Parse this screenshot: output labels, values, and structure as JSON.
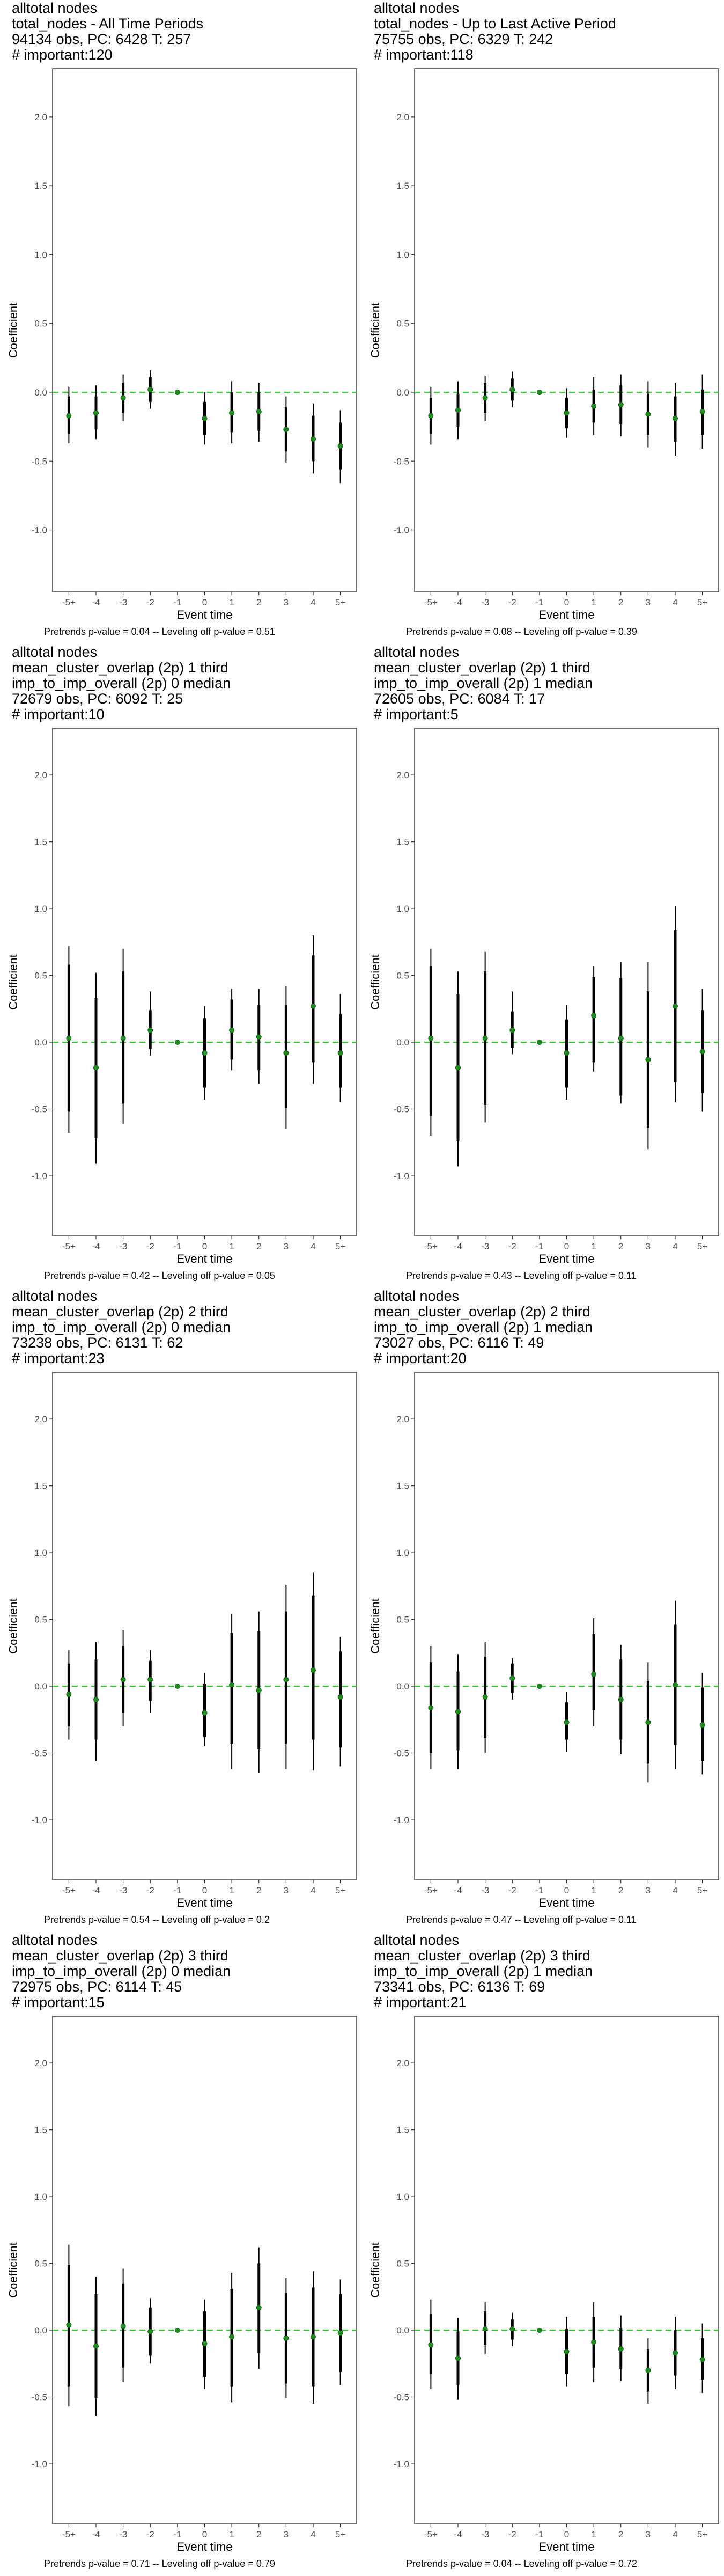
{
  "figure": {
    "xlabel": "Event time",
    "ylabel": "Coefficient",
    "reference_line_color": "#33cc33",
    "point_color": "#1f8a1f",
    "errorbar_color": "#000000"
  },
  "chart_data": [
    {
      "type": "scatter",
      "title_lines": [
        "alltotal nodes",
        "total_nodes - All Time Periods",
        "94134 obs, PC: 6428 T: 257",
        "# important:120"
      ],
      "xlabel": "Event time",
      "ylabel": "Coefficient",
      "categories": [
        "-5+",
        "-4",
        "-3",
        "-2",
        "-1",
        "0",
        "1",
        "2",
        "3",
        "4",
        "5+"
      ],
      "ylim": [
        -1.45,
        2.35
      ],
      "yticks": [
        -1.0,
        -0.5,
        0.0,
        0.5,
        1.0,
        1.5,
        2.0
      ],
      "grid": false,
      "reference_line": 0,
      "values": [
        -0.17,
        -0.15,
        -0.04,
        0.02,
        0.0,
        -0.19,
        -0.15,
        -0.14,
        -0.27,
        -0.34,
        -0.39
      ],
      "ci_outer": [
        [
          -0.37,
          0.04
        ],
        [
          -0.34,
          0.05
        ],
        [
          -0.21,
          0.13
        ],
        [
          -0.12,
          0.16
        ],
        [
          0,
          0
        ],
        [
          -0.38,
          0.0
        ],
        [
          -0.37,
          0.08
        ],
        [
          -0.36,
          0.07
        ],
        [
          -0.51,
          -0.03
        ],
        [
          -0.59,
          -0.08
        ],
        [
          -0.66,
          -0.13
        ]
      ],
      "ci_inner": [
        [
          -0.3,
          -0.03
        ],
        [
          -0.27,
          -0.03
        ],
        [
          -0.15,
          0.07
        ],
        [
          -0.07,
          0.11
        ],
        [
          0,
          0
        ],
        [
          -0.31,
          -0.07
        ],
        [
          -0.29,
          0.0
        ],
        [
          -0.28,
          0.0
        ],
        [
          -0.43,
          -0.11
        ],
        [
          -0.5,
          -0.17
        ],
        [
          -0.56,
          -0.22
        ]
      ],
      "caption": "Pretrends p-value = 0.04 -- Leveling off p-value = 0.51"
    },
    {
      "type": "scatter",
      "title_lines": [
        "alltotal nodes",
        "total_nodes - Up to Last Active Period",
        "75755 obs, PC: 6329 T: 242",
        "# important:118"
      ],
      "xlabel": "Event time",
      "ylabel": "Coefficient",
      "categories": [
        "-5+",
        "-4",
        "-3",
        "-2",
        "-1",
        "0",
        "1",
        "2",
        "3",
        "4",
        "5+"
      ],
      "ylim": [
        -1.45,
        2.35
      ],
      "yticks": [
        -1.0,
        -0.5,
        0.0,
        0.5,
        1.0,
        1.5,
        2.0
      ],
      "grid": false,
      "reference_line": 0,
      "values": [
        -0.17,
        -0.13,
        -0.04,
        0.02,
        0.0,
        -0.15,
        -0.1,
        -0.09,
        -0.16,
        -0.19,
        -0.14
      ],
      "ci_outer": [
        [
          -0.38,
          0.04
        ],
        [
          -0.34,
          0.08
        ],
        [
          -0.21,
          0.12
        ],
        [
          -0.11,
          0.15
        ],
        [
          0,
          0
        ],
        [
          -0.33,
          0.03
        ],
        [
          -0.31,
          0.11
        ],
        [
          -0.32,
          0.13
        ],
        [
          -0.4,
          0.08
        ],
        [
          -0.46,
          0.07
        ],
        [
          -0.41,
          0.13
        ]
      ],
      "ci_inner": [
        [
          -0.3,
          -0.04
        ],
        [
          -0.25,
          -0.01
        ],
        [
          -0.15,
          0.07
        ],
        [
          -0.06,
          0.1
        ],
        [
          0,
          0
        ],
        [
          -0.26,
          -0.04
        ],
        [
          -0.22,
          0.02
        ],
        [
          -0.23,
          0.05
        ],
        [
          -0.31,
          -0.01
        ],
        [
          -0.36,
          -0.03
        ],
        [
          -0.31,
          0.02
        ]
      ],
      "caption": "Pretrends p-value = 0.08 -- Leveling off p-value = 0.39"
    },
    {
      "type": "scatter",
      "title_lines": [
        "alltotal nodes",
        "mean_cluster_overlap (2p) 1 third",
        "imp_to_imp_overall (2p) 0 median",
        "72679 obs, PC: 6092 T: 25",
        "# important:10"
      ],
      "xlabel": "Event time",
      "ylabel": "Coefficient",
      "categories": [
        "-5+",
        "-4",
        "-3",
        "-2",
        "-1",
        "0",
        "1",
        "2",
        "3",
        "4",
        "5+"
      ],
      "ylim": [
        -1.45,
        2.35
      ],
      "yticks": [
        -1.0,
        -0.5,
        0.0,
        0.5,
        1.0,
        1.5,
        2.0
      ],
      "grid": false,
      "reference_line": 0,
      "values": [
        0.03,
        -0.19,
        0.03,
        0.09,
        0.0,
        -0.08,
        0.09,
        0.04,
        -0.08,
        0.27,
        -0.08
      ],
      "ci_outer": [
        [
          -0.68,
          0.72
        ],
        [
          -0.91,
          0.52
        ],
        [
          -0.61,
          0.7
        ],
        [
          -0.1,
          0.38
        ],
        [
          0,
          0
        ],
        [
          -0.43,
          0.27
        ],
        [
          -0.21,
          0.4
        ],
        [
          -0.31,
          0.4
        ],
        [
          -0.65,
          0.42
        ],
        [
          -0.31,
          0.8
        ],
        [
          -0.45,
          0.36
        ]
      ],
      "ci_inner": [
        [
          -0.52,
          0.58
        ],
        [
          -0.72,
          0.33
        ],
        [
          -0.46,
          0.53
        ],
        [
          -0.05,
          0.24
        ],
        [
          0,
          0
        ],
        [
          -0.34,
          0.18
        ],
        [
          -0.13,
          0.32
        ],
        [
          -0.21,
          0.28
        ],
        [
          -0.49,
          0.28
        ],
        [
          -0.15,
          0.65
        ],
        [
          -0.34,
          0.21
        ]
      ],
      "caption": "Pretrends p-value = 0.42 -- Leveling off p-value = 0.05"
    },
    {
      "type": "scatter",
      "title_lines": [
        "alltotal nodes",
        "mean_cluster_overlap (2p) 1 third",
        "imp_to_imp_overall (2p) 1 median",
        "72605 obs, PC: 6084 T: 17",
        "# important:5"
      ],
      "xlabel": "Event time",
      "ylabel": "Coefficient",
      "categories": [
        "-5+",
        "-4",
        "-3",
        "-2",
        "-1",
        "0",
        "1",
        "2",
        "3",
        "4",
        "5+"
      ],
      "ylim": [
        -1.45,
        2.35
      ],
      "yticks": [
        -1.0,
        -0.5,
        0.0,
        0.5,
        1.0,
        1.5,
        2.0
      ],
      "grid": false,
      "reference_line": 0,
      "values": [
        0.03,
        -0.19,
        0.03,
        0.09,
        0.0,
        -0.08,
        0.2,
        0.03,
        -0.13,
        0.27,
        -0.07
      ],
      "ci_outer": [
        [
          -0.7,
          0.7
        ],
        [
          -0.93,
          0.53
        ],
        [
          -0.6,
          0.68
        ],
        [
          -0.09,
          0.38
        ],
        [
          0,
          0
        ],
        [
          -0.43,
          0.28
        ],
        [
          -0.22,
          0.57
        ],
        [
          -0.46,
          0.6
        ],
        [
          -0.8,
          0.6
        ],
        [
          -0.45,
          1.02
        ],
        [
          -0.52,
          0.4
        ]
      ],
      "ci_inner": [
        [
          -0.55,
          0.57
        ],
        [
          -0.74,
          0.36
        ],
        [
          -0.47,
          0.53
        ],
        [
          -0.04,
          0.23
        ],
        [
          0,
          0
        ],
        [
          -0.34,
          0.17
        ],
        [
          -0.15,
          0.49
        ],
        [
          -0.4,
          0.48
        ],
        [
          -0.64,
          0.38
        ],
        [
          -0.3,
          0.84
        ],
        [
          -0.38,
          0.24
        ]
      ],
      "caption": "Pretrends p-value = 0.43 -- Leveling off p-value = 0.11"
    },
    {
      "type": "scatter",
      "title_lines": [
        "alltotal nodes",
        "mean_cluster_overlap (2p) 2 third",
        "imp_to_imp_overall (2p) 0 median",
        "73238 obs, PC: 6131 T: 62",
        "# important:23"
      ],
      "xlabel": "Event time",
      "ylabel": "Coefficient",
      "categories": [
        "-5+",
        "-4",
        "-3",
        "-2",
        "-1",
        "0",
        "1",
        "2",
        "3",
        "4",
        "5+"
      ],
      "ylim": [
        -1.45,
        2.35
      ],
      "yticks": [
        -1.0,
        -0.5,
        0.0,
        0.5,
        1.0,
        1.5,
        2.0
      ],
      "grid": false,
      "reference_line": 0,
      "values": [
        -0.06,
        -0.1,
        0.05,
        0.05,
        0.0,
        -0.2,
        0.01,
        -0.03,
        0.05,
        0.12,
        -0.08
      ],
      "ci_outer": [
        [
          -0.4,
          0.27
        ],
        [
          -0.56,
          0.33
        ],
        [
          -0.3,
          0.42
        ],
        [
          -0.2,
          0.27
        ],
        [
          0,
          0
        ],
        [
          -0.45,
          0.1
        ],
        [
          -0.62,
          0.54
        ],
        [
          -0.65,
          0.56
        ],
        [
          -0.62,
          0.76
        ],
        [
          -0.63,
          0.85
        ],
        [
          -0.6,
          0.37
        ]
      ],
      "ci_inner": [
        [
          -0.3,
          0.17
        ],
        [
          -0.4,
          0.2
        ],
        [
          -0.2,
          0.3
        ],
        [
          -0.11,
          0.19
        ],
        [
          0,
          0
        ],
        [
          -0.38,
          0.02
        ],
        [
          -0.43,
          0.4
        ],
        [
          -0.47,
          0.41
        ],
        [
          -0.43,
          0.56
        ],
        [
          -0.4,
          0.68
        ],
        [
          -0.46,
          0.26
        ]
      ],
      "caption": "Pretrends p-value = 0.54 -- Leveling off p-value = 0.2"
    },
    {
      "type": "scatter",
      "title_lines": [
        "alltotal nodes",
        "mean_cluster_overlap (2p) 2 third",
        "imp_to_imp_overall (2p) 1 median",
        "73027 obs, PC: 6116 T: 49",
        "# important:20"
      ],
      "xlabel": "Event time",
      "ylabel": "Coefficient",
      "categories": [
        "-5+",
        "-4",
        "-3",
        "-2",
        "-1",
        "0",
        "1",
        "2",
        "3",
        "4",
        "5+"
      ],
      "ylim": [
        -1.45,
        2.35
      ],
      "yticks": [
        -1.0,
        -0.5,
        0.0,
        0.5,
        1.0,
        1.5,
        2.0
      ],
      "grid": false,
      "reference_line": 0,
      "values": [
        -0.16,
        -0.19,
        -0.08,
        0.06,
        0.0,
        -0.27,
        0.09,
        -0.1,
        -0.27,
        0.01,
        -0.29
      ],
      "ci_outer": [
        [
          -0.62,
          0.3
        ],
        [
          -0.62,
          0.24
        ],
        [
          -0.5,
          0.33
        ],
        [
          -0.1,
          0.21
        ],
        [
          0,
          0
        ],
        [
          -0.49,
          -0.04
        ],
        [
          -0.3,
          0.51
        ],
        [
          -0.51,
          0.31
        ],
        [
          -0.72,
          0.18
        ],
        [
          -0.62,
          0.64
        ],
        [
          -0.66,
          0.1
        ]
      ],
      "ci_inner": [
        [
          -0.5,
          0.18
        ],
        [
          -0.48,
          0.11
        ],
        [
          -0.39,
          0.22
        ],
        [
          -0.05,
          0.17
        ],
        [
          0,
          0
        ],
        [
          -0.4,
          -0.12
        ],
        [
          -0.18,
          0.39
        ],
        [
          -0.4,
          0.2
        ],
        [
          -0.58,
          0.04
        ],
        [
          -0.44,
          0.46
        ],
        [
          -0.56,
          -0.01
        ]
      ],
      "caption": "Pretrends p-value = 0.47 -- Leveling off p-value = 0.11"
    },
    {
      "type": "scatter",
      "title_lines": [
        "alltotal nodes",
        "mean_cluster_overlap (2p) 3 third",
        "imp_to_imp_overall (2p) 0 median",
        "72975 obs, PC: 6114 T: 45",
        "# important:15"
      ],
      "xlabel": "Event time",
      "ylabel": "Coefficient",
      "categories": [
        "-5+",
        "-4",
        "-3",
        "-2",
        "-1",
        "0",
        "1",
        "2",
        "3",
        "4",
        "5+"
      ],
      "ylim": [
        -1.45,
        2.35
      ],
      "yticks": [
        -1.0,
        -0.5,
        0.0,
        0.5,
        1.0,
        1.5,
        2.0
      ],
      "grid": false,
      "reference_line": 0,
      "values": [
        0.04,
        -0.12,
        0.03,
        -0.01,
        0.0,
        -0.1,
        -0.05,
        0.17,
        -0.06,
        -0.05,
        -0.02
      ],
      "ci_outer": [
        [
          -0.57,
          0.64
        ],
        [
          -0.64,
          0.4
        ],
        [
          -0.39,
          0.46
        ],
        [
          -0.25,
          0.24
        ],
        [
          0,
          0
        ],
        [
          -0.44,
          0.23
        ],
        [
          -0.54,
          0.43
        ],
        [
          -0.29,
          0.62
        ],
        [
          -0.51,
          0.39
        ],
        [
          -0.55,
          0.44
        ],
        [
          -0.41,
          0.38
        ]
      ],
      "ci_inner": [
        [
          -0.42,
          0.49
        ],
        [
          -0.51,
          0.27
        ],
        [
          -0.28,
          0.35
        ],
        [
          -0.19,
          0.17
        ],
        [
          0,
          0
        ],
        [
          -0.35,
          0.14
        ],
        [
          -0.42,
          0.31
        ],
        [
          -0.17,
          0.5
        ],
        [
          -0.4,
          0.28
        ],
        [
          -0.42,
          0.32
        ],
        [
          -0.31,
          0.27
        ]
      ],
      "caption": "Pretrends p-value = 0.71 -- Leveling off p-value = 0.79"
    },
    {
      "type": "scatter",
      "title_lines": [
        "alltotal nodes",
        "mean_cluster_overlap (2p) 3 third",
        "imp_to_imp_overall (2p) 1 median",
        "73341 obs, PC: 6136 T: 69",
        "# important:21"
      ],
      "xlabel": "Event time",
      "ylabel": "Coefficient",
      "categories": [
        "-5+",
        "-4",
        "-3",
        "-2",
        "-1",
        "0",
        "1",
        "2",
        "3",
        "4",
        "5+"
      ],
      "ylim": [
        -1.45,
        2.35
      ],
      "yticks": [
        -1.0,
        -0.5,
        0.0,
        0.5,
        1.0,
        1.5,
        2.0
      ],
      "grid": false,
      "reference_line": 0,
      "values": [
        -0.11,
        -0.21,
        0.01,
        0.01,
        0.0,
        -0.16,
        -0.09,
        -0.14,
        -0.3,
        -0.17,
        -0.22
      ],
      "ci_outer": [
        [
          -0.44,
          0.23
        ],
        [
          -0.52,
          0.09
        ],
        [
          -0.18,
          0.21
        ],
        [
          -0.12,
          0.13
        ],
        [
          0,
          0
        ],
        [
          -0.42,
          0.1
        ],
        [
          -0.39,
          0.21
        ],
        [
          -0.38,
          0.11
        ],
        [
          -0.55,
          -0.06
        ],
        [
          -0.44,
          0.1
        ],
        [
          -0.47,
          0.05
        ]
      ],
      "ci_inner": [
        [
          -0.33,
          0.12
        ],
        [
          -0.41,
          -0.01
        ],
        [
          -0.11,
          0.14
        ],
        [
          -0.07,
          0.08
        ],
        [
          0,
          0
        ],
        [
          -0.33,
          0.01
        ],
        [
          -0.28,
          0.1
        ],
        [
          -0.29,
          0.02
        ],
        [
          -0.46,
          -0.14
        ],
        [
          -0.34,
          0.0
        ],
        [
          -0.37,
          -0.06
        ]
      ],
      "caption": "Pretrends p-value = 0.04 -- Leveling off p-value = 0.72"
    }
  ]
}
